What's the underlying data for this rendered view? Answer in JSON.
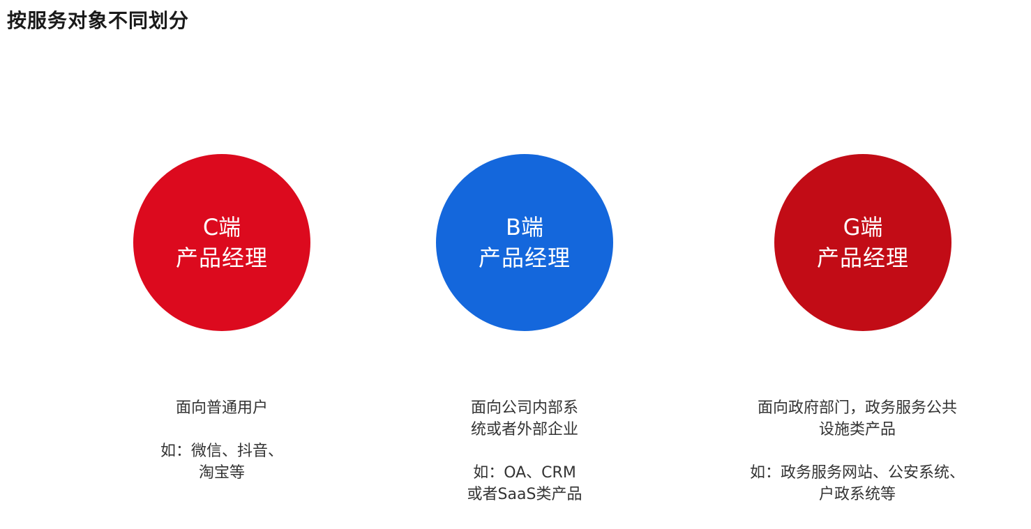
{
  "title": "按服务对象不同划分",
  "columns": [
    {
      "key": "c",
      "circle_color": "#dc0a1e",
      "circle_line1": "C端",
      "circle_line2": "产品经理",
      "desc_lines": [
        "面向普通用户"
      ],
      "example_lines": [
        "如：微信、抖音、",
        "淘宝等"
      ]
    },
    {
      "key": "b",
      "circle_color": "#1467dc",
      "circle_line1": "B端",
      "circle_line2": "产品经理",
      "desc_lines": [
        "面向公司内部系",
        "统或者外部企业"
      ],
      "example_lines": [
        "如：OA、CRM",
        "或者SaaS类产品"
      ]
    },
    {
      "key": "g",
      "circle_color": "#c20c16",
      "circle_line1": "G端",
      "circle_line2": "产品经理",
      "desc_lines": [
        "面向政府部门，政务服务公共",
        "设施类产品"
      ],
      "example_lines": [
        "如：政务服务网站、公安系统、",
        "户政系统等"
      ]
    }
  ]
}
